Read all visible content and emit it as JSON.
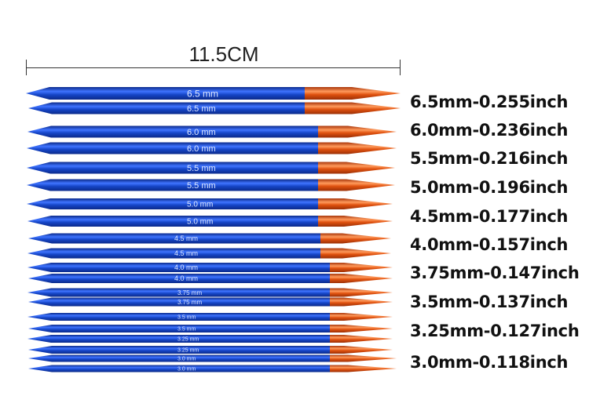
{
  "measurement": {
    "length_label": "11.5CM"
  },
  "needle_imprints": [
    "6.5 mm",
    "6.5 mm",
    "6.0 mm",
    "6.0 mm",
    "5.5 mm",
    "5.5 mm",
    "5.0 mm",
    "5.0 mm",
    "4.5 mm",
    "4.5 mm",
    "4.0 mm",
    "4.0 mm",
    "3.75 mm",
    "3.75 mm",
    "3.5 mm",
    "3.5 mm",
    "3.25 mm",
    "3.25 mm",
    "3.0 mm",
    "3.0 mm"
  ],
  "size_labels": [
    "6.5mm-0.255inch",
    "6.0mm-0.236inch",
    "5.5mm-0.216inch",
    "5.0mm-0.196inch",
    "4.5mm-0.177inch",
    "4.0mm-0.157inch",
    "3.75mm-0.147inch",
    "3.5mm-0.137inch",
    "3.25mm-0.127inch",
    "3.0mm-0.118inch"
  ],
  "colors": {
    "shaft": "#1646c8",
    "shaft_dark": "#0b2a8a",
    "tip": "#e0520f",
    "tip_light": "#ff9a5c"
  }
}
